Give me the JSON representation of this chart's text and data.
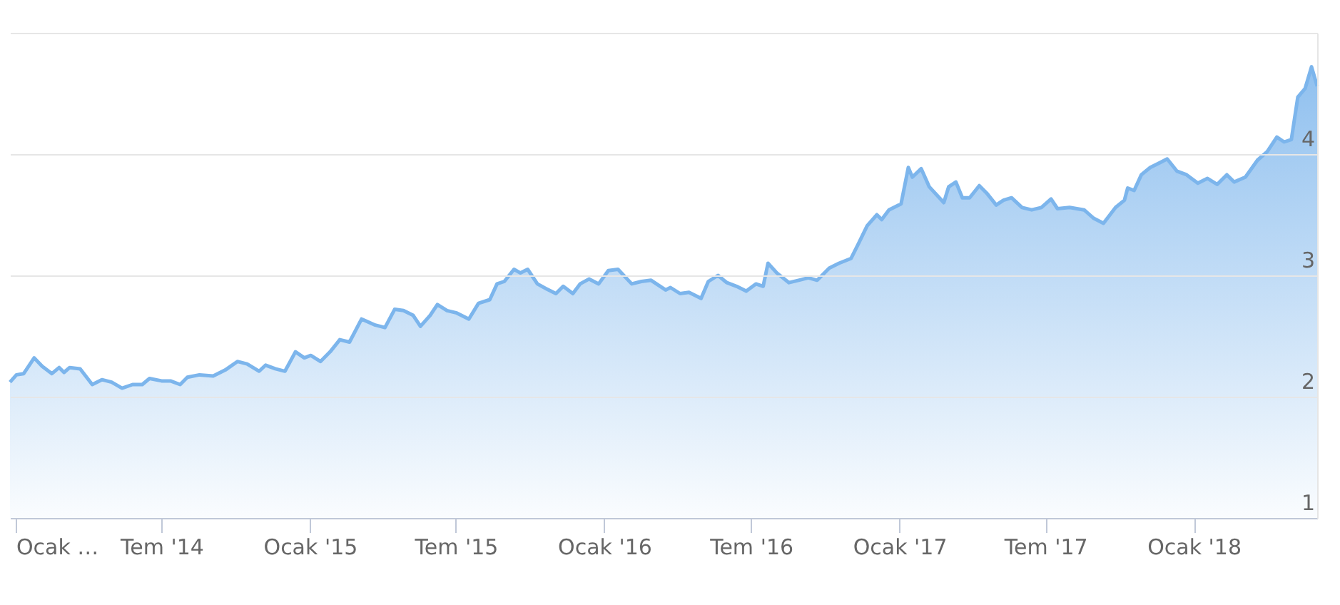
{
  "chart_data": {
    "type": "area",
    "color": "#7cb5ec",
    "grid": "y",
    "xlim": [
      "2013-12-25",
      "2018-06-03"
    ],
    "xticks": [
      {
        "value": "2014-01-01",
        "label": "Ocak …"
      },
      {
        "value": "2014-07-01",
        "label": "Tem '14"
      },
      {
        "value": "2015-01-01",
        "label": "Ocak '15"
      },
      {
        "value": "2015-07-01",
        "label": "Tem '15"
      },
      {
        "value": "2016-01-01",
        "label": "Ocak '16"
      },
      {
        "value": "2016-07-01",
        "label": "Tem '16"
      },
      {
        "value": "2017-01-01",
        "label": "Ocak '17"
      },
      {
        "value": "2017-07-01",
        "label": "Tem '17"
      },
      {
        "value": "2018-01-01",
        "label": "Ocak '18"
      }
    ],
    "ylim": [
      1,
      5
    ],
    "yticks": [
      1,
      2,
      3,
      4,
      {
        "value": 5,
        "label": null
      }
    ],
    "x": [
      "2013-12-25",
      "2014-01-02",
      "2014-01-11",
      "2014-01-24",
      "2014-02-03",
      "2014-02-15",
      "2014-02-24",
      "2014-03-02",
      "2014-03-09",
      "2014-03-22",
      "2014-04-06",
      "2014-04-18",
      "2014-04-30",
      "2014-05-13",
      "2014-05-26",
      "2014-06-07",
      "2014-06-16",
      "2014-07-01",
      "2014-07-12",
      "2014-07-24",
      "2014-08-02",
      "2014-08-17",
      "2014-09-03",
      "2014-09-18",
      "2014-10-03",
      "2014-10-15",
      "2014-10-30",
      "2014-11-07",
      "2014-11-19",
      "2014-12-01",
      "2014-12-14",
      "2014-12-25",
      "2015-01-02",
      "2015-01-14",
      "2015-01-26",
      "2015-02-07",
      "2015-02-19",
      "2015-03-06",
      "2015-03-23",
      "2015-04-04",
      "2015-04-16",
      "2015-04-27",
      "2015-05-09",
      "2015-05-18",
      "2015-05-30",
      "2015-06-08",
      "2015-06-20",
      "2015-07-02",
      "2015-07-17",
      "2015-07-29",
      "2015-08-12",
      "2015-08-21",
      "2015-08-30",
      "2015-09-11",
      "2015-09-19",
      "2015-09-28",
      "2015-10-10",
      "2015-10-21",
      "2015-11-02",
      "2015-11-11",
      "2015-11-23",
      "2015-12-02",
      "2015-12-13",
      "2015-12-25",
      "2016-01-06",
      "2016-01-18",
      "2016-02-04",
      "2016-02-16",
      "2016-02-28",
      "2016-03-17",
      "2016-03-23",
      "2016-04-04",
      "2016-04-15",
      "2016-04-30",
      "2016-05-09",
      "2016-05-21",
      "2016-06-01",
      "2016-06-13",
      "2016-06-25",
      "2016-07-07",
      "2016-07-16",
      "2016-07-22",
      "2016-08-02",
      "2016-08-17",
      "2016-08-29",
      "2016-09-10",
      "2016-09-21",
      "2016-10-06",
      "2016-10-18",
      "2016-11-02",
      "2016-11-11",
      "2016-11-22",
      "2016-12-04",
      "2016-12-10",
      "2016-12-19",
      "2017-01-03",
      "2017-01-12",
      "2017-01-17",
      "2017-01-28",
      "2017-02-07",
      "2017-02-25",
      "2017-03-03",
      "2017-03-12",
      "2017-03-20",
      "2017-03-29",
      "2017-04-10",
      "2017-04-19",
      "2017-05-01",
      "2017-05-10",
      "2017-05-20",
      "2017-06-02",
      "2017-06-14",
      "2017-06-26",
      "2017-07-08",
      "2017-07-16",
      "2017-07-31",
      "2017-08-18",
      "2017-08-30",
      "2017-09-11",
      "2017-09-26",
      "2017-10-07",
      "2017-10-11",
      "2017-10-19",
      "2017-10-28",
      "2017-11-08",
      "2017-11-20",
      "2017-11-29",
      "2017-12-11",
      "2017-12-23",
      "2018-01-06",
      "2018-01-18",
      "2018-01-30",
      "2018-02-11",
      "2018-02-20",
      "2018-03-06",
      "2018-03-21",
      "2018-04-02",
      "2018-04-14",
      "2018-04-23",
      "2018-05-02",
      "2018-05-10",
      "2018-05-19",
      "2018-05-27",
      "2018-06-03"
    ],
    "values": [
      2.12,
      2.18,
      2.19,
      2.32,
      2.25,
      2.19,
      2.24,
      2.2,
      2.24,
      2.23,
      2.1,
      2.14,
      2.12,
      2.07,
      2.1,
      2.1,
      2.15,
      2.13,
      2.13,
      2.1,
      2.16,
      2.18,
      2.17,
      2.22,
      2.29,
      2.27,
      2.21,
      2.26,
      2.23,
      2.21,
      2.37,
      2.32,
      2.34,
      2.29,
      2.37,
      2.47,
      2.45,
      2.64,
      2.59,
      2.57,
      2.72,
      2.71,
      2.67,
      2.58,
      2.67,
      2.76,
      2.71,
      2.69,
      2.64,
      2.77,
      2.8,
      2.93,
      2.95,
      3.05,
      3.02,
      3.05,
      2.93,
      2.89,
      2.85,
      2.91,
      2.85,
      2.93,
      2.97,
      2.93,
      3.04,
      3.05,
      2.93,
      2.95,
      2.96,
      2.88,
      2.9,
      2.85,
      2.86,
      2.81,
      2.95,
      3.0,
      2.94,
      2.91,
      2.87,
      2.93,
      2.91,
      3.1,
      3.02,
      2.94,
      2.96,
      2.98,
      2.96,
      3.06,
      3.1,
      3.14,
      3.26,
      3.41,
      3.5,
      3.46,
      3.54,
      3.59,
      3.89,
      3.81,
      3.88,
      3.73,
      3.6,
      3.73,
      3.77,
      3.64,
      3.64,
      3.74,
      3.68,
      3.58,
      3.62,
      3.64,
      3.56,
      3.54,
      3.56,
      3.63,
      3.55,
      3.56,
      3.54,
      3.47,
      3.43,
      3.56,
      3.62,
      3.72,
      3.7,
      3.83,
      3.89,
      3.93,
      3.96,
      3.86,
      3.83,
      3.76,
      3.8,
      3.75,
      3.83,
      3.77,
      3.81,
      3.95,
      4.02,
      4.14,
      4.1,
      4.12,
      4.47,
      4.54,
      4.72,
      4.56
    ]
  }
}
